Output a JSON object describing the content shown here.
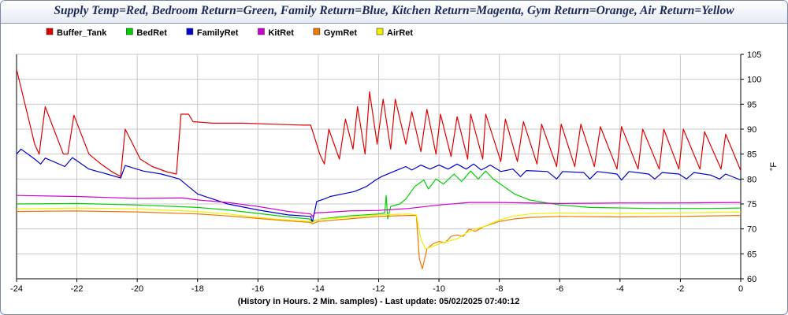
{
  "chart_data": {
    "type": "line",
    "title": "Supply Temp=Red, Bedroom Return=Green, Family Return=Blue, Kitchen Return=Magenta, Gym Return=Orange, Air Return=Yellow",
    "xlabel": "(History in Hours. 2 Min. samples) - Last update: 05/02/2025 07:40:12",
    "ylabel": "°F",
    "xlim": [
      -24,
      0
    ],
    "ylim": [
      60,
      105
    ],
    "x_ticks": [
      "-24",
      "-22",
      "-20",
      "-18",
      "-16",
      "-14",
      "-12",
      "-10",
      "-8",
      "-6",
      "-4",
      "-2",
      "0"
    ],
    "y_ticks": [
      "60",
      "65",
      "70",
      "75",
      "80",
      "85",
      "90",
      "95",
      "100",
      "105"
    ],
    "grid": true,
    "legend_position": "top-left",
    "series": [
      {
        "name": "Buffer_Tank",
        "color": "#e00000",
        "points": [
          [
            -24,
            102
          ],
          [
            -23.4,
            87
          ],
          [
            -23.25,
            85
          ],
          [
            -23.05,
            94.5
          ],
          [
            -22.45,
            85
          ],
          [
            -22.3,
            85
          ],
          [
            -22.1,
            92.8
          ],
          [
            -21.6,
            85
          ],
          [
            -21.2,
            83
          ],
          [
            -20.85,
            81.5
          ],
          [
            -20.55,
            80.5
          ],
          [
            -20.4,
            90
          ],
          [
            -19.9,
            84
          ],
          [
            -19.5,
            82.5
          ],
          [
            -19,
            81.4
          ],
          [
            -18.7,
            81
          ],
          [
            -18.55,
            93
          ],
          [
            -18.3,
            93
          ],
          [
            -18.15,
            91.5
          ],
          [
            -17.5,
            91.2
          ],
          [
            -16.5,
            91.2
          ],
          [
            -15.5,
            91
          ],
          [
            -14.5,
            90.8
          ],
          [
            -14.25,
            90.8
          ],
          [
            -13.95,
            85
          ],
          [
            -13.8,
            83
          ],
          [
            -13.65,
            90
          ],
          [
            -13.3,
            84
          ],
          [
            -13.1,
            92
          ],
          [
            -12.85,
            86
          ],
          [
            -12.7,
            94.5
          ],
          [
            -12.45,
            85
          ],
          [
            -12.3,
            97.5
          ],
          [
            -12.05,
            87
          ],
          [
            -11.85,
            96
          ],
          [
            -11.6,
            86
          ],
          [
            -11.45,
            96
          ],
          [
            -11.1,
            87
          ],
          [
            -10.9,
            93.5
          ],
          [
            -10.6,
            85.5
          ],
          [
            -10.4,
            94
          ],
          [
            -10.1,
            85
          ],
          [
            -9.95,
            93
          ],
          [
            -9.6,
            84.5
          ],
          [
            -9.4,
            92.5
          ],
          [
            -9.05,
            84
          ],
          [
            -8.95,
            93
          ],
          [
            -8.55,
            84
          ],
          [
            -8.45,
            93
          ],
          [
            -7.95,
            83.5
          ],
          [
            -7.8,
            92
          ],
          [
            -7.4,
            83.5
          ],
          [
            -7.2,
            91.5
          ],
          [
            -6.75,
            83
          ],
          [
            -6.6,
            91
          ],
          [
            -6.1,
            82.5
          ],
          [
            -5.95,
            91
          ],
          [
            -5.5,
            82.5
          ],
          [
            -5.3,
            91
          ],
          [
            -4.85,
            82.5
          ],
          [
            -4.65,
            90.5
          ],
          [
            -4.1,
            82
          ],
          [
            -3.95,
            90.5
          ],
          [
            -3.4,
            82
          ],
          [
            -3.25,
            90
          ],
          [
            -2.7,
            82
          ],
          [
            -2.55,
            90
          ],
          [
            -2.05,
            82
          ],
          [
            -1.9,
            90
          ],
          [
            -1.35,
            82
          ],
          [
            -1.2,
            89.5
          ],
          [
            -0.65,
            82
          ],
          [
            -0.5,
            89
          ],
          [
            0,
            81.7
          ]
        ]
      },
      {
        "name": "BedRet",
        "color": "#00d000",
        "points": [
          [
            -24,
            75
          ],
          [
            -22,
            75.1
          ],
          [
            -20,
            74.8
          ],
          [
            -18,
            74.3
          ],
          [
            -17,
            73.8
          ],
          [
            -16,
            73.1
          ],
          [
            -15,
            72.4
          ],
          [
            -14.3,
            72
          ],
          [
            -14.2,
            71.5
          ],
          [
            -13.9,
            72
          ],
          [
            -13,
            72.6
          ],
          [
            -12,
            73
          ],
          [
            -11.8,
            73.2
          ],
          [
            -11.75,
            76.7
          ],
          [
            -11.7,
            72
          ],
          [
            -11.6,
            74.5
          ],
          [
            -11.3,
            75
          ],
          [
            -11.1,
            76
          ],
          [
            -10.8,
            78.5
          ],
          [
            -10.5,
            79.8
          ],
          [
            -10.35,
            78
          ],
          [
            -10.1,
            80
          ],
          [
            -9.85,
            79
          ],
          [
            -9.5,
            81
          ],
          [
            -9.25,
            79.5
          ],
          [
            -8.95,
            81.6
          ],
          [
            -8.7,
            80
          ],
          [
            -8.45,
            81.6
          ],
          [
            -8.2,
            80
          ],
          [
            -7.5,
            77
          ],
          [
            -7,
            75.8
          ],
          [
            -6,
            74.8
          ],
          [
            -5,
            74.3
          ],
          [
            -3,
            74.1
          ],
          [
            -1,
            74.1
          ],
          [
            0,
            74.2
          ]
        ]
      },
      {
        "name": "FamilyRet",
        "color": "#0000d0",
        "points": [
          [
            -24,
            85
          ],
          [
            -23.85,
            86
          ],
          [
            -23.4,
            84
          ],
          [
            -23.2,
            83
          ],
          [
            -23.05,
            84.2
          ],
          [
            -22.4,
            82.5
          ],
          [
            -22.15,
            84.3
          ],
          [
            -21.6,
            82
          ],
          [
            -21,
            81
          ],
          [
            -20.55,
            80.2
          ],
          [
            -20.4,
            82.7
          ],
          [
            -19.8,
            81.6
          ],
          [
            -19.2,
            81
          ],
          [
            -18.6,
            80
          ],
          [
            -18.4,
            79
          ],
          [
            -18,
            77
          ],
          [
            -17,
            75
          ],
          [
            -16,
            73.8
          ],
          [
            -15,
            72.8
          ],
          [
            -14.25,
            72.5
          ],
          [
            -14.2,
            71.3
          ],
          [
            -14.05,
            75.5
          ],
          [
            -13.8,
            76
          ],
          [
            -13.6,
            76.5
          ],
          [
            -13.2,
            77
          ],
          [
            -12.8,
            77.5
          ],
          [
            -12.4,
            78.5
          ],
          [
            -12.1,
            79.8
          ],
          [
            -11.9,
            80.5
          ],
          [
            -11.5,
            81.5
          ],
          [
            -11.1,
            82.5
          ],
          [
            -10.9,
            81.8
          ],
          [
            -10.6,
            82.8
          ],
          [
            -10.3,
            82
          ],
          [
            -10,
            82.8
          ],
          [
            -9.7,
            82
          ],
          [
            -9.4,
            83
          ],
          [
            -9.1,
            82
          ],
          [
            -8.85,
            83
          ],
          [
            -8.6,
            81.8
          ],
          [
            -8.3,
            82.8
          ],
          [
            -7.95,
            81.5
          ],
          [
            -7.55,
            82
          ],
          [
            -7.3,
            80.5
          ],
          [
            -7.1,
            81.7
          ],
          [
            -6.4,
            81.5
          ],
          [
            -6.1,
            80
          ],
          [
            -5.9,
            81.5
          ],
          [
            -5.2,
            81.3
          ],
          [
            -5,
            80
          ],
          [
            -4.75,
            81.5
          ],
          [
            -4.1,
            81
          ],
          [
            -3.95,
            79.8
          ],
          [
            -3.7,
            81.5
          ],
          [
            -3.05,
            81
          ],
          [
            -2.85,
            80
          ],
          [
            -2.6,
            81.3
          ],
          [
            -2.05,
            81
          ],
          [
            -1.8,
            80
          ],
          [
            -1.55,
            81.3
          ],
          [
            -1,
            80.8
          ],
          [
            -0.7,
            80
          ],
          [
            -0.5,
            81
          ],
          [
            0,
            79.8
          ]
        ]
      },
      {
        "name": "KitRet",
        "color": "#d000d0",
        "points": [
          [
            -24,
            76.7
          ],
          [
            -22,
            76.5
          ],
          [
            -20,
            76.1
          ],
          [
            -18.5,
            76.2
          ],
          [
            -18,
            75.8
          ],
          [
            -17,
            75.3
          ],
          [
            -16,
            74.5
          ],
          [
            -15,
            73.5
          ],
          [
            -14.25,
            73
          ],
          [
            -14.2,
            72.5
          ],
          [
            -14.1,
            73.2
          ],
          [
            -13.5,
            73.4
          ],
          [
            -13,
            73.6
          ],
          [
            -12,
            73.7
          ],
          [
            -11,
            74.1
          ],
          [
            -10,
            74.8
          ],
          [
            -9,
            75.3
          ],
          [
            -8,
            75.3
          ],
          [
            -6,
            75.1
          ],
          [
            -4,
            75.2
          ],
          [
            -2,
            75.2
          ],
          [
            0,
            75.3
          ]
        ]
      },
      {
        "name": "GymRet",
        "color": "#f07800",
        "points": [
          [
            -24,
            73.5
          ],
          [
            -22,
            73.6
          ],
          [
            -20,
            73.4
          ],
          [
            -18,
            73
          ],
          [
            -17,
            72.6
          ],
          [
            -16,
            72.1
          ],
          [
            -15,
            71.6
          ],
          [
            -14.25,
            71.3
          ],
          [
            -14.2,
            71
          ],
          [
            -14,
            71.5
          ],
          [
            -13,
            72
          ],
          [
            -12,
            72.5
          ],
          [
            -11,
            72.7
          ],
          [
            -10.75,
            72.7
          ],
          [
            -10.65,
            64
          ],
          [
            -10.55,
            62
          ],
          [
            -10.4,
            66
          ],
          [
            -10.2,
            67
          ],
          [
            -10,
            67.5
          ],
          [
            -9.8,
            67.2
          ],
          [
            -9.6,
            68.5
          ],
          [
            -9.4,
            68.8
          ],
          [
            -9.2,
            68.5
          ],
          [
            -9,
            70
          ],
          [
            -8.8,
            69.5
          ],
          [
            -8.5,
            70.5
          ],
          [
            -8,
            71.5
          ],
          [
            -7.5,
            72
          ],
          [
            -7,
            72.3
          ],
          [
            -6,
            72.5
          ],
          [
            -4,
            72.4
          ],
          [
            -2,
            72.5
          ],
          [
            0,
            72.7
          ]
        ]
      },
      {
        "name": "AirRet",
        "color": "#f0f000",
        "points": [
          [
            -24,
            74
          ],
          [
            -22,
            74.2
          ],
          [
            -20,
            74
          ],
          [
            -18,
            73.5
          ],
          [
            -17,
            73
          ],
          [
            -16,
            72.3
          ],
          [
            -15,
            71.8
          ],
          [
            -14.25,
            71.5
          ],
          [
            -14.2,
            71.3
          ],
          [
            -14,
            71.9
          ],
          [
            -13,
            72.3
          ],
          [
            -12,
            72.8
          ],
          [
            -11,
            73
          ],
          [
            -10.75,
            72.8
          ],
          [
            -10.6,
            68
          ],
          [
            -10.45,
            66
          ],
          [
            -10.2,
            66.5
          ],
          [
            -10,
            67
          ],
          [
            -9.7,
            67.5
          ],
          [
            -9.4,
            68
          ],
          [
            -9,
            69.5
          ],
          [
            -8.5,
            70.5
          ],
          [
            -8,
            71.8
          ],
          [
            -7.5,
            72.6
          ],
          [
            -7,
            73
          ],
          [
            -6,
            73.2
          ],
          [
            -4,
            73.1
          ],
          [
            -2,
            73.2
          ],
          [
            0,
            73.4
          ]
        ]
      }
    ]
  }
}
